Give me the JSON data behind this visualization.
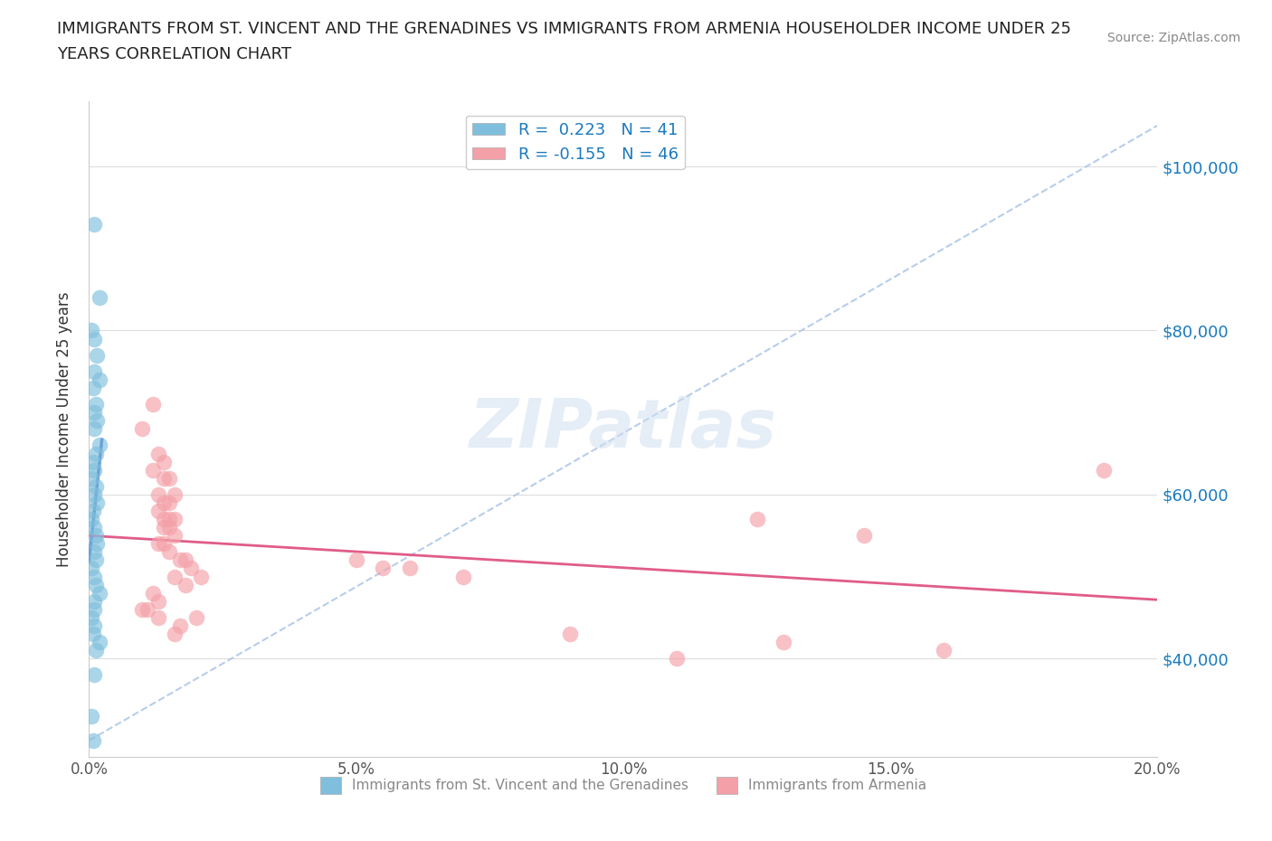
{
  "title_line1": "IMMIGRANTS FROM ST. VINCENT AND THE GRENADINES VS IMMIGRANTS FROM ARMENIA HOUSEHOLDER INCOME UNDER 25",
  "title_line2": "YEARS CORRELATION CHART",
  "source": "Source: ZipAtlas.com",
  "ylabel": "Householder Income Under 25 years",
  "xlim": [
    0.0,
    0.2
  ],
  "ylim": [
    28000,
    108000
  ],
  "xticks": [
    0.0,
    0.05,
    0.1,
    0.15,
    0.2
  ],
  "xticklabels": [
    "0.0%",
    "5.0%",
    "10.0%",
    "15.0%",
    "20.0%"
  ],
  "yticks": [
    40000,
    60000,
    80000,
    100000
  ],
  "yticklabels": [
    "$40,000",
    "$60,000",
    "$80,000",
    "$100,000"
  ],
  "R1": 0.223,
  "N1": 41,
  "R2": -0.155,
  "N2": 46,
  "color1": "#7fbfdd",
  "color2": "#f4a0a8",
  "trendline1_color": "#4472c4",
  "trendline2_color": "#e05c8a",
  "diagonal_color": "#b0c8e8",
  "watermark": "ZIPatlas",
  "legend_label1": "Immigrants from St. Vincent and the Grenadines",
  "legend_label2": "Immigrants from Armenia",
  "scatter1_x": [
    0.001,
    0.002,
    0.0005,
    0.001,
    0.0015,
    0.001,
    0.002,
    0.0008,
    0.0012,
    0.001,
    0.0015,
    0.001,
    0.002,
    0.0012,
    0.0008,
    0.001,
    0.0005,
    0.0012,
    0.001,
    0.0015,
    0.0008,
    0.0005,
    0.001,
    0.0012,
    0.0015,
    0.001,
    0.0012,
    0.0005,
    0.001,
    0.0012,
    0.002,
    0.001,
    0.001,
    0.0005,
    0.001,
    0.0008,
    0.002,
    0.0012,
    0.001,
    0.0005,
    0.0008
  ],
  "scatter1_y": [
    93000,
    84000,
    80000,
    79000,
    77000,
    75000,
    74000,
    73000,
    71000,
    70000,
    69000,
    68000,
    66000,
    65000,
    64000,
    63000,
    62000,
    61000,
    60000,
    59000,
    58000,
    57000,
    56000,
    55000,
    54000,
    53000,
    52000,
    51000,
    50000,
    49000,
    48000,
    47000,
    46000,
    45000,
    44000,
    43000,
    42000,
    41000,
    38000,
    33000,
    30000
  ],
  "scatter2_x": [
    0.012,
    0.01,
    0.013,
    0.014,
    0.012,
    0.015,
    0.014,
    0.016,
    0.013,
    0.015,
    0.014,
    0.013,
    0.015,
    0.014,
    0.016,
    0.015,
    0.014,
    0.016,
    0.013,
    0.014,
    0.015,
    0.017,
    0.018,
    0.019,
    0.021,
    0.016,
    0.018,
    0.012,
    0.013,
    0.01,
    0.011,
    0.013,
    0.02,
    0.017,
    0.016,
    0.125,
    0.13,
    0.145,
    0.16,
    0.19,
    0.05,
    0.055,
    0.06,
    0.07,
    0.09,
    0.11
  ],
  "scatter2_y": [
    71000,
    68000,
    65000,
    64000,
    63000,
    62000,
    62000,
    60000,
    60000,
    59000,
    59000,
    58000,
    57000,
    57000,
    57000,
    56000,
    56000,
    55000,
    54000,
    54000,
    53000,
    52000,
    52000,
    51000,
    50000,
    50000,
    49000,
    48000,
    47000,
    46000,
    46000,
    45000,
    45000,
    44000,
    43000,
    57000,
    42000,
    55000,
    41000,
    63000,
    52000,
    51000,
    51000,
    50000,
    43000,
    40000
  ]
}
